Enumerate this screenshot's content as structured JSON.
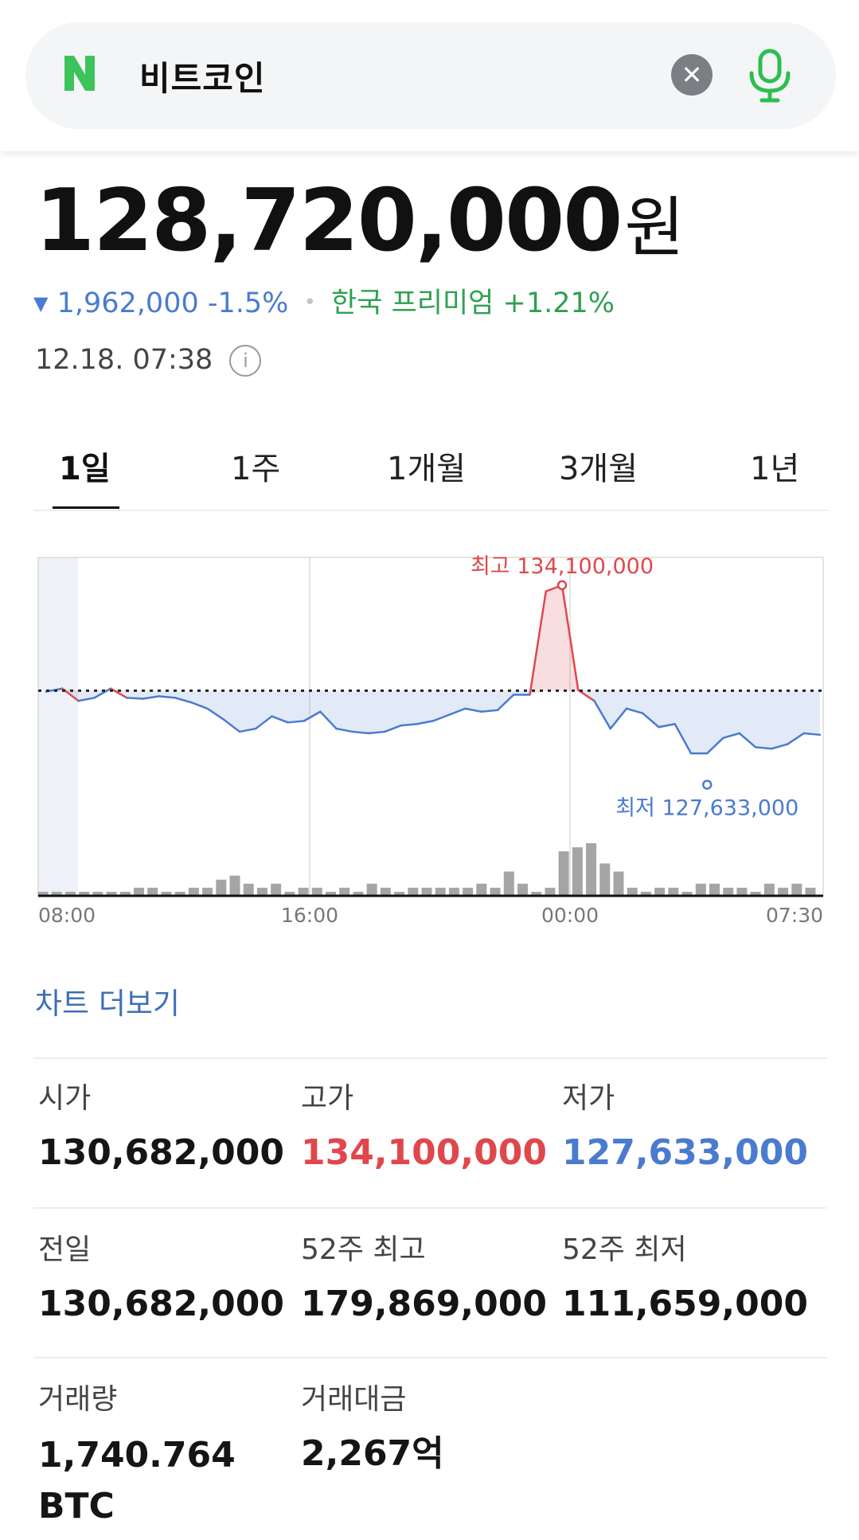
{
  "search": {
    "query": "비트코인",
    "logo_letter": "N"
  },
  "quote": {
    "price": "128,720,000",
    "unit": "원",
    "change_arrow": "▼",
    "change": "1,962,000 -1.5%",
    "premium": "한국 프리미엄 +1.21%",
    "timestamp": "12.18. 07:38",
    "info_glyph": "i"
  },
  "tabs": [
    {
      "label": "1일",
      "active": true
    },
    {
      "label": "1주",
      "active": false
    },
    {
      "label": "1개월",
      "active": false
    },
    {
      "label": "3개월",
      "active": false
    },
    {
      "label": "1년",
      "active": false
    }
  ],
  "chart_data": {
    "type": "line",
    "x_ticks": [
      "08:00",
      "16:00",
      "00:00",
      "07:30"
    ],
    "reference_price": 130682000,
    "high_label": "최고 134,100,000",
    "low_label": "최저 127,633,000",
    "high_value": 134100000,
    "low_value": 127633000,
    "ylim": [
      127000000,
      135000000
    ],
    "series": [
      {
        "values": [
          130650000,
          130750000,
          130350000,
          130450000,
          130750000,
          130450000,
          130420000,
          130500000,
          130450000,
          130300000,
          130100000,
          129750000,
          129350000,
          129450000,
          129850000,
          129650000,
          129700000,
          130000000,
          129450000,
          129350000,
          129300000,
          129350000,
          129550000,
          129600000,
          129700000,
          129900000,
          130100000,
          130000000,
          130050000,
          130550000,
          130550000,
          133900000,
          134100000,
          130700000,
          130350000,
          129450000,
          130100000,
          129950000,
          129500000,
          129600000,
          128650000,
          128650000,
          129150000,
          129300000,
          128850000,
          128800000,
          128950000,
          129300000,
          129250000
        ]
      }
    ],
    "volume": [
      1,
      1,
      1,
      1,
      1,
      1,
      1,
      2,
      2,
      1,
      1,
      2,
      2,
      4,
      5,
      3,
      2,
      3,
      1,
      2,
      2,
      1,
      2,
      1,
      3,
      2,
      1,
      2,
      2,
      2,
      2,
      2,
      3,
      2,
      6,
      3,
      1,
      2,
      11,
      12,
      13,
      8,
      6,
      2,
      1,
      2,
      2,
      1,
      3,
      3,
      2,
      2,
      1,
      3,
      2,
      3,
      2
    ],
    "grid": true
  },
  "more_link": "차트 더보기",
  "stats": [
    {
      "label": "시가",
      "value": "130,682,000",
      "tone": "normal"
    },
    {
      "label": "고가",
      "value": "134,100,000",
      "tone": "high"
    },
    {
      "label": "저가",
      "value": "127,633,000",
      "tone": "low"
    },
    {
      "label": "전일",
      "value": "130,682,000",
      "tone": "normal"
    },
    {
      "label": "52주 최고",
      "value": "179,869,000",
      "tone": "normal"
    },
    {
      "label": "52주 최저",
      "value": "111,659,000",
      "tone": "normal"
    },
    {
      "label": "거래량",
      "value": "1,740.764 BTC",
      "tone": "normal"
    },
    {
      "label": "거래대금",
      "value": "2,267억",
      "tone": "normal"
    }
  ],
  "colors": {
    "up": "#e0474c",
    "down": "#4a7bd0",
    "premium": "#2fa051",
    "naver_green": "#3cc35c",
    "mic_green": "#2dbe4f"
  }
}
